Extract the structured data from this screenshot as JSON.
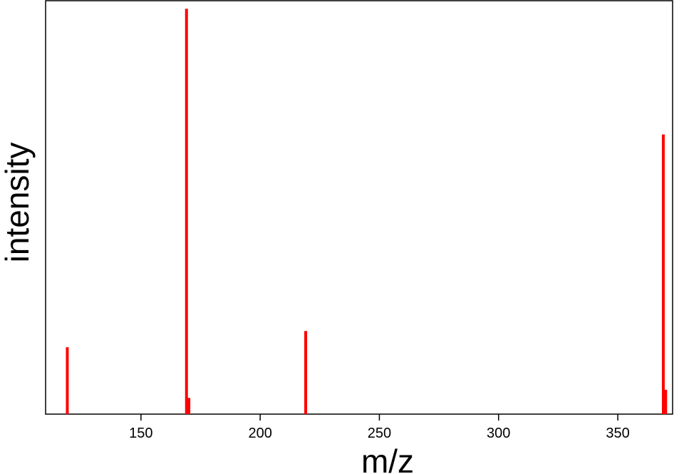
{
  "chart_data": {
    "type": "bar",
    "title": "",
    "xlabel": "m/z",
    "ylabel": "intensity",
    "xlim": [
      110,
      373
    ],
    "ylim": [
      0,
      102
    ],
    "xticks": [
      150,
      200,
      250,
      300,
      350
    ],
    "yticks_shown": false,
    "grid": false,
    "bar_color": "#ff0000",
    "peaks": [
      {
        "mz": 119.1,
        "intensity": 16.5
      },
      {
        "mz": 169.1,
        "intensity": 100
      },
      {
        "mz": 170.1,
        "intensity": 4
      },
      {
        "mz": 219.1,
        "intensity": 20.5
      },
      {
        "mz": 369.1,
        "intensity": 69
      },
      {
        "mz": 370.1,
        "intensity": 6
      }
    ]
  }
}
